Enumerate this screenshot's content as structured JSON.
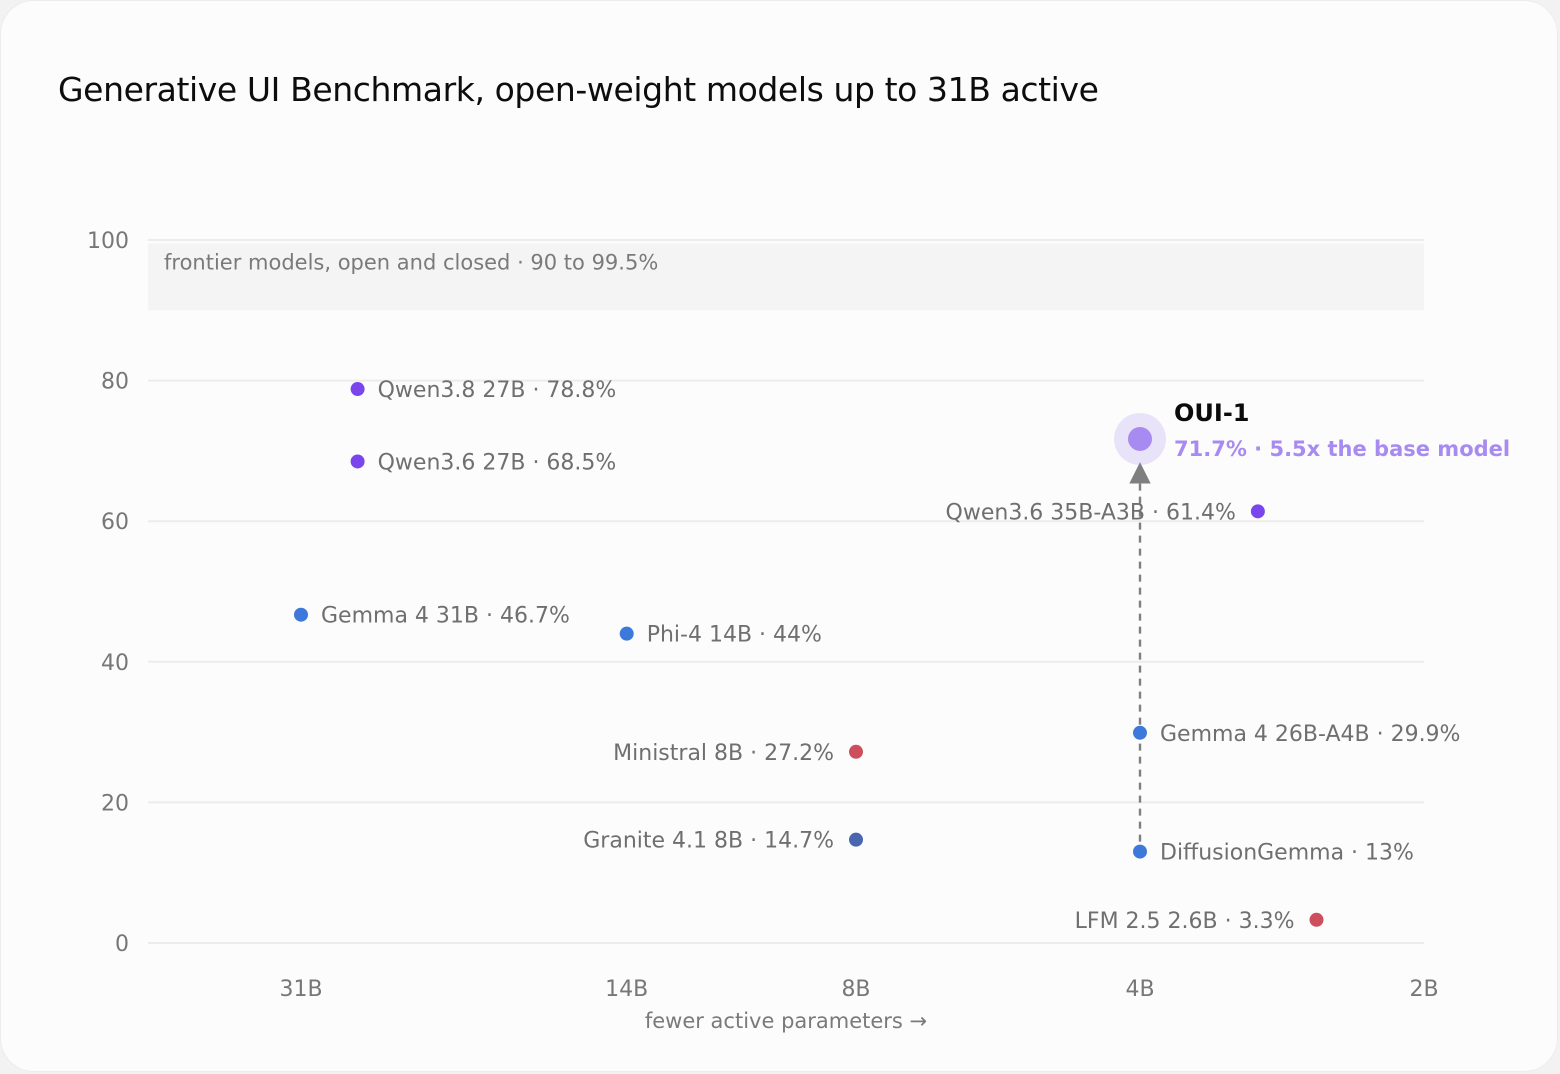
{
  "title": "Generative UI Benchmark, open-weight models up to 31B active",
  "chart_data": {
    "type": "scatter",
    "title": "Generative UI Benchmark, open-weight models up to 31B active",
    "xlabel": "fewer active parameters →",
    "ylabel": "",
    "x_scale": "log, reversed (active parameters)",
    "x_ticks": [
      "31B",
      "14B",
      "8B",
      "4B",
      "2B"
    ],
    "y_ticks": [
      "0",
      "20",
      "40",
      "60",
      "80",
      "100"
    ],
    "ylim": [
      0,
      100
    ],
    "grid": "horizontal",
    "band": {
      "label": "frontier models, open and closed · 90 to 99.5%",
      "y0": 90,
      "y1": 99.5,
      "color": "#f4f4f4"
    },
    "colors": {
      "qwen": "#7b45ee",
      "google": "#3d79da",
      "red": "#cb4f5c",
      "granite": "#4a66b0",
      "highlight": "#a88bf0",
      "grid": "#ececec"
    },
    "points": [
      {
        "label": "Qwen3.8 27B · 78.8%",
        "x": 27,
        "y": 78.8,
        "color": "#7b45ee",
        "label_side": "right"
      },
      {
        "label": "Qwen3.6 27B · 68.5%",
        "x": 27,
        "y": 68.5,
        "color": "#7b45ee",
        "label_side": "right"
      },
      {
        "label": "Qwen3.6 35B-A3B · 61.4%",
        "x": 3,
        "y": 61.4,
        "color": "#7b45ee",
        "label_side": "left"
      },
      {
        "label": "Gemma 4 31B · 46.7%",
        "x": 31,
        "y": 46.7,
        "color": "#3d79da",
        "label_side": "right"
      },
      {
        "label": "Phi-4 14B · 44%",
        "x": 14,
        "y": 44,
        "color": "#3d79da",
        "label_side": "right"
      },
      {
        "label": "Ministral 8B · 27.2%",
        "x": 8,
        "y": 27.2,
        "color": "#cb4f5c",
        "label_side": "left"
      },
      {
        "label": "Granite 4.1 8B · 14.7%",
        "x": 8,
        "y": 14.7,
        "color": "#4a66b0",
        "label_side": "left"
      },
      {
        "label": "Gemma 4 26B-A4B · 29.9%",
        "x": 4,
        "y": 29.9,
        "color": "#3d79da",
        "label_side": "right"
      },
      {
        "label": "DiffusionGemma · 13%",
        "x": 4,
        "y": 13,
        "color": "#3d79da",
        "label_side": "right"
      },
      {
        "label": "LFM 2.5 2.6B · 3.3%",
        "x": 2.6,
        "y": 3.3,
        "color": "#cb4f5c",
        "label_side": "left"
      }
    ],
    "highlight": {
      "name": "OUI-1",
      "note": "71.7% · 5.5x the base model",
      "x": 4,
      "y": 71.7,
      "color": "#a88bf0",
      "from_y": 13
    }
  }
}
